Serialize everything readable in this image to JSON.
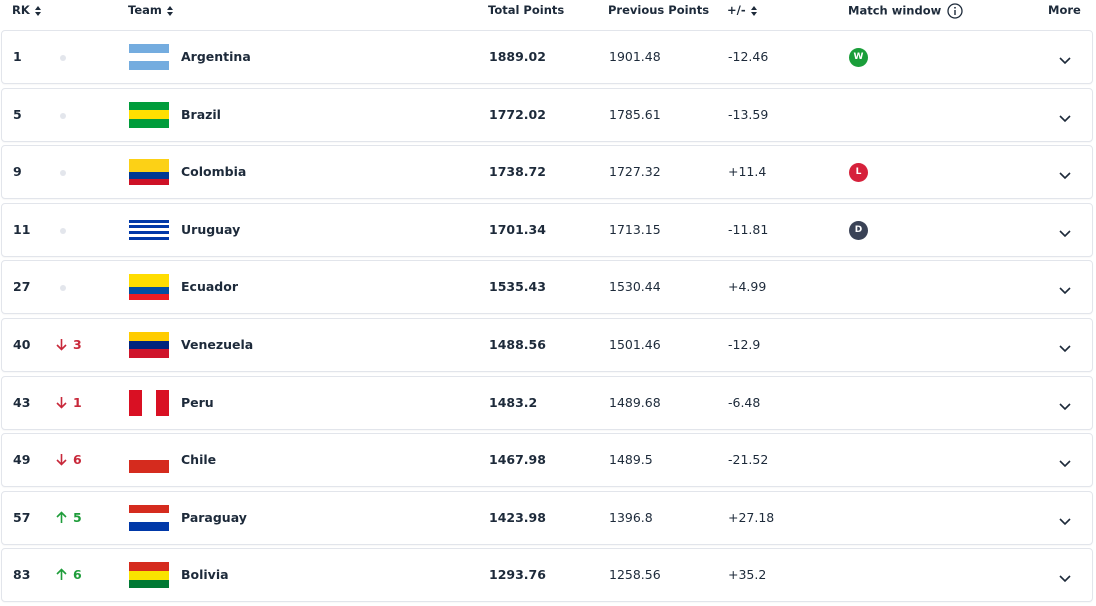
{
  "table": {
    "headers": {
      "rank": "RK",
      "team": "Team",
      "total": "Total Points",
      "previous": "Previous Points",
      "diff": "+/-",
      "match": "Match window",
      "more": "More"
    },
    "rows": [
      {
        "rank": "1",
        "team": "Argentina",
        "total": "1889.02",
        "previous": "1901.48",
        "diff": "-12.46",
        "match": "W",
        "match_color": "#1a9e3a",
        "flag": [
          "#74acdf",
          "#ffffff",
          "#74acdf"
        ]
      },
      {
        "rank": "5",
        "team": "Brazil",
        "total": "1772.02",
        "previous": "1785.61",
        "diff": "-13.59",
        "flag": [
          "#009c3b",
          "#ffdf00",
          "#009c3b"
        ]
      },
      {
        "rank": "9",
        "team": "Colombia",
        "total": "1738.72",
        "previous": "1727.32",
        "diff": "+11.4",
        "match": "L",
        "match_color": "#d6213b",
        "flag": [
          "#fcd116",
          "#fcd116",
          "#003893",
          "#ce1126"
        ]
      },
      {
        "rank": "11",
        "team": "Uruguay",
        "total": "1701.34",
        "previous": "1713.15",
        "diff": "-11.81",
        "match": "D",
        "match_color": "#3a4256",
        "flag": [
          "#ffffff",
          "#0038a8",
          "#ffffff",
          "#0038a8",
          "#ffffff",
          "#0038a8",
          "#ffffff",
          "#0038a8",
          "#ffffff"
        ]
      },
      {
        "rank": "27",
        "team": "Ecuador",
        "total": "1535.43",
        "previous": "1530.44",
        "diff": "+4.99",
        "flag": [
          "#ffdd00",
          "#ffdd00",
          "#034ea2",
          "#ed1c24"
        ]
      },
      {
        "rank": "40",
        "move": "3",
        "trend": "down",
        "team": "Venezuela",
        "total": "1488.56",
        "previous": "1501.46",
        "diff": "-12.9",
        "flag": [
          "#ffcc00",
          "#00247d",
          "#cf142b"
        ]
      },
      {
        "rank": "43",
        "move": "1",
        "trend": "down",
        "team": "Peru",
        "total": "1483.2",
        "previous": "1489.68",
        "diff": "-6.48",
        "flag": [
          "#d91023"
        ],
        "vertical": [
          "#d91023",
          "#ffffff",
          "#d91023"
        ]
      },
      {
        "rank": "49",
        "move": "6",
        "trend": "down",
        "team": "Chile",
        "total": "1467.98",
        "previous": "1489.5",
        "diff": "-21.52",
        "flag": [
          "#ffffff",
          "#d52b1e"
        ]
      },
      {
        "rank": "57",
        "move": "5",
        "trend": "up",
        "team": "Paraguay",
        "total": "1423.98",
        "previous": "1396.8",
        "diff": "+27.18",
        "flag": [
          "#d52b1e",
          "#ffffff",
          "#0038a8"
        ]
      },
      {
        "rank": "83",
        "move": "6",
        "trend": "up",
        "team": "Bolivia",
        "total": "1293.76",
        "previous": "1258.56",
        "diff": "+35.2",
        "flag": [
          "#d52b1e",
          "#f9e300",
          "#007934"
        ]
      }
    ]
  }
}
